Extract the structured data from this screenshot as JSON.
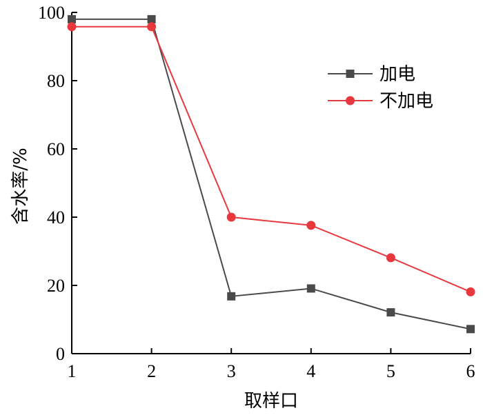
{
  "chart_data": {
    "type": "line",
    "xlabel": "取样口",
    "ylabel": "含水率/%",
    "x": [
      1,
      2,
      3,
      4,
      5,
      6
    ],
    "xlim": [
      1,
      6
    ],
    "ylim": [
      0,
      100
    ],
    "xticks": [
      "1",
      "2",
      "3",
      "4",
      "5",
      "6"
    ],
    "yticks": [
      "0",
      "20",
      "40",
      "60",
      "80",
      "100"
    ],
    "grid": false,
    "legend_position": "top-right",
    "series": [
      {
        "name": "加电",
        "values": [
          98.0,
          98.0,
          16.8,
          19.1,
          12.1,
          7.2
        ],
        "color": "#4a4a4a",
        "marker": "square"
      },
      {
        "name": "不加电",
        "values": [
          95.8,
          95.8,
          40.0,
          37.6,
          28.1,
          18.1
        ],
        "color": "#e8383d",
        "marker": "circle"
      }
    ]
  }
}
